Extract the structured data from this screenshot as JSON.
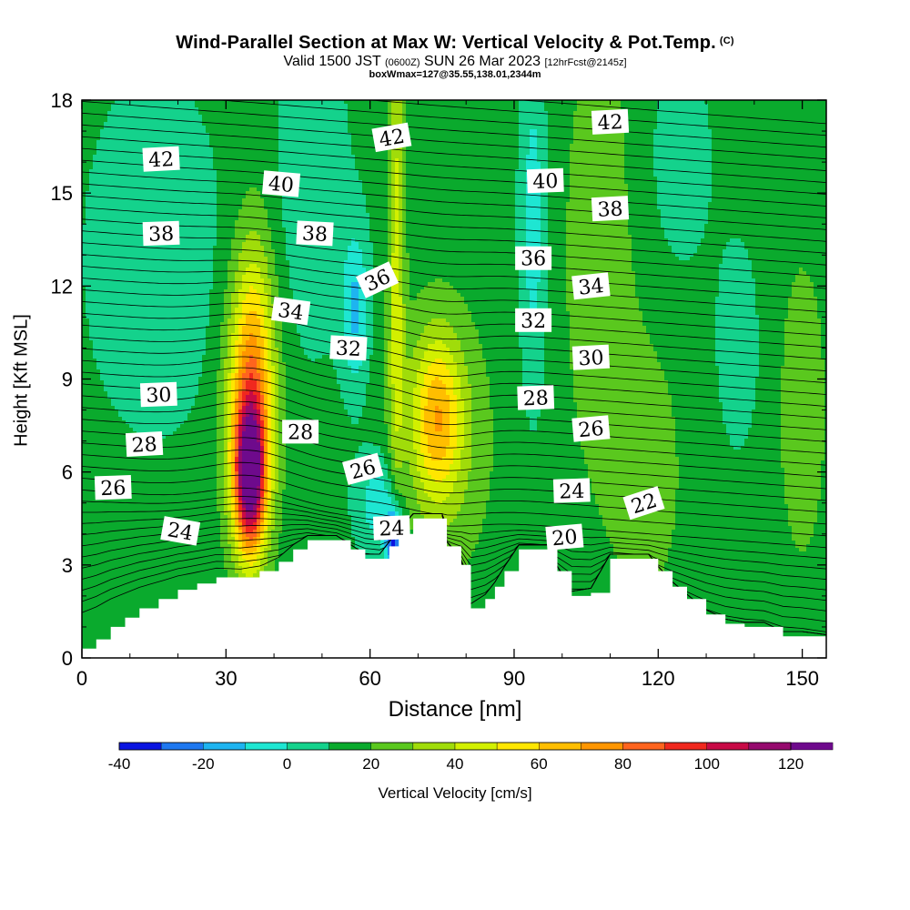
{
  "title": "Wind-Parallel Section at Max W: Vertical Velocity & Pot.Temp.",
  "copyright": "(C)",
  "subtitle": {
    "prefix": "Valid 1500 JST",
    "utc": "(0600Z)",
    "date": "SUN 26 Mar 2023",
    "fcst": "[12hrFcst@2145z]"
  },
  "box_info": "boxWmax=127@35.55,138.01,2344m",
  "chart_data": {
    "type": "heatmap",
    "xlabel": "Distance [nm]",
    "ylabel": "Height [Kft MSL]",
    "xlim": [
      0,
      155
    ],
    "ylim": [
      0,
      18
    ],
    "x_ticks": [
      0,
      30,
      60,
      90,
      120,
      150
    ],
    "y_ticks": [
      0,
      3,
      6,
      9,
      12,
      15,
      18
    ],
    "colorbar": {
      "label": "Vertical Velocity [cm/s]",
      "ticks": [
        -40,
        -20,
        0,
        20,
        40,
        60,
        80,
        100,
        120
      ],
      "bins": [
        -40,
        -30,
        -20,
        -10,
        0,
        10,
        20,
        30,
        40,
        50,
        60,
        70,
        80,
        90,
        100,
        110,
        120
      ],
      "colors": [
        "#0a14e0",
        "#1e78f0",
        "#1eb4f0",
        "#1ee6d2",
        "#14d28c",
        "#0aaa2d",
        "#5ac81e",
        "#a0dc0a",
        "#d2f000",
        "#ffe600",
        "#ffbe00",
        "#ff9600",
        "#ff641e",
        "#f0281e",
        "#c80a46",
        "#960a6e",
        "#6e0a8c"
      ]
    },
    "terrain": [
      [
        0,
        0.3
      ],
      [
        3,
        0.6
      ],
      [
        6,
        1.0
      ],
      [
        9,
        1.3
      ],
      [
        12,
        1.6
      ],
      [
        16,
        1.9
      ],
      [
        20,
        2.2
      ],
      [
        24,
        2.4
      ],
      [
        28,
        2.6
      ],
      [
        33,
        2.6
      ],
      [
        37,
        2.8
      ],
      [
        41,
        3.1
      ],
      [
        44,
        3.5
      ],
      [
        47,
        3.8
      ],
      [
        50,
        3.8
      ],
      [
        53,
        3.8
      ],
      [
        56,
        3.5
      ],
      [
        59,
        3.2
      ],
      [
        62,
        3.2
      ],
      [
        64,
        3.6
      ],
      [
        66,
        4.0
      ],
      [
        69,
        4.5
      ],
      [
        72,
        4.5
      ],
      [
        75,
        4.5
      ],
      [
        76,
        3.6
      ],
      [
        79,
        3.0
      ],
      [
        81,
        1.6
      ],
      [
        84,
        1.9
      ],
      [
        86,
        2.3
      ],
      [
        88,
        2.8
      ],
      [
        91,
        3.5
      ],
      [
        94,
        3.5
      ],
      [
        97,
        3.5
      ],
      [
        99,
        2.8
      ],
      [
        102,
        2.0
      ],
      [
        106,
        2.1
      ],
      [
        110,
        3.2
      ],
      [
        114,
        3.2
      ],
      [
        118,
        3.2
      ],
      [
        120,
        2.8
      ],
      [
        123,
        2.3
      ],
      [
        126,
        1.9
      ],
      [
        130,
        1.4
      ],
      [
        134,
        1.1
      ],
      [
        138,
        1.0
      ],
      [
        142,
        1.0
      ],
      [
        146,
        0.7
      ],
      [
        150,
        0.7
      ],
      [
        155,
        0.6
      ]
    ],
    "w_features": [
      {
        "x": 35,
        "y": 5.8,
        "sx": 2.2,
        "sy": 1.6,
        "amp": 90
      },
      {
        "x": 35,
        "y": 7.8,
        "sx": 3.5,
        "sy": 3.0,
        "amp": 55
      },
      {
        "x": 36,
        "y": 10.5,
        "sx": 3.0,
        "sy": 3.0,
        "amp": 20
      },
      {
        "x": 74,
        "y": 7.8,
        "sx": 3.5,
        "sy": 1.8,
        "amp": 40
      },
      {
        "x": 75,
        "y": 7.0,
        "sx": 7.0,
        "sy": 3.0,
        "amp": 18
      },
      {
        "x": 65.5,
        "y": 13.0,
        "sx": 1.2,
        "sy": 6.0,
        "amp": 30
      },
      {
        "x": 65,
        "y": 3.8,
        "sx": 1.2,
        "sy": 0.7,
        "amp": -55
      },
      {
        "x": 62,
        "y": 5.0,
        "sx": 3.5,
        "sy": 1.2,
        "amp": -22
      },
      {
        "x": 57,
        "y": 11.2,
        "sx": 2.0,
        "sy": 1.8,
        "amp": -25
      },
      {
        "x": 94,
        "y": 14.0,
        "sx": 2.0,
        "sy": 4.0,
        "amp": -20
      },
      {
        "x": 15,
        "y": 13.0,
        "sx": 10.0,
        "sy": 4.0,
        "amp": -12
      },
      {
        "x": 48,
        "y": 15.0,
        "sx": 6.0,
        "sy": 4.0,
        "amp": -10
      },
      {
        "x": 108,
        "y": 13.0,
        "sx": 6.0,
        "sy": 6.0,
        "amp": 12
      },
      {
        "x": 137,
        "y": 10.0,
        "sx": 3.0,
        "sy": 2.2,
        "amp": -14
      },
      {
        "x": 118,
        "y": 6.0,
        "sx": 5.0,
        "sy": 3.0,
        "amp": 12
      },
      {
        "x": 124,
        "y": 16.0,
        "sx": 6.0,
        "sy": 3.0,
        "amp": -8
      },
      {
        "x": 150,
        "y": 8.0,
        "sx": 6.0,
        "sy": 6.0,
        "amp": 8
      }
    ],
    "w_background": 14,
    "contour_labels": [
      {
        "text": "42",
        "x": 16.5,
        "y": 16.1,
        "rot": -3
      },
      {
        "text": "40",
        "x": 41.5,
        "y": 15.3,
        "rot": 5
      },
      {
        "text": "38",
        "x": 16.5,
        "y": 13.7,
        "rot": -2
      },
      {
        "text": "38",
        "x": 48.5,
        "y": 13.7,
        "rot": 3
      },
      {
        "text": "34",
        "x": 43.5,
        "y": 11.2,
        "rot": 8
      },
      {
        "text": "36",
        "x": 61.5,
        "y": 12.2,
        "rot": -25
      },
      {
        "text": "32",
        "x": 55.5,
        "y": 10.0,
        "rot": 3
      },
      {
        "text": "30",
        "x": 16.0,
        "y": 8.5,
        "rot": -2
      },
      {
        "text": "28",
        "x": 13.0,
        "y": 6.9,
        "rot": -3
      },
      {
        "text": "28",
        "x": 45.5,
        "y": 7.3,
        "rot": 0
      },
      {
        "text": "26",
        "x": 6.5,
        "y": 5.5,
        "rot": -2
      },
      {
        "text": "26",
        "x": 58.5,
        "y": 6.1,
        "rot": -15
      },
      {
        "text": "24",
        "x": 20.5,
        "y": 4.1,
        "rot": 10
      },
      {
        "text": "24",
        "x": 64.5,
        "y": 4.2,
        "rot": -2
      },
      {
        "text": "42",
        "x": 64.5,
        "y": 16.8,
        "rot": -10
      },
      {
        "text": "40",
        "x": 96.5,
        "y": 15.4,
        "rot": -2
      },
      {
        "text": "36",
        "x": 94.0,
        "y": 12.9,
        "rot": 0
      },
      {
        "text": "32",
        "x": 94.0,
        "y": 10.9,
        "rot": 0
      },
      {
        "text": "28",
        "x": 94.5,
        "y": 8.4,
        "rot": -2
      },
      {
        "text": "42",
        "x": 110.0,
        "y": 17.3,
        "rot": -3
      },
      {
        "text": "38",
        "x": 110.0,
        "y": 14.5,
        "rot": -3
      },
      {
        "text": "34",
        "x": 106.0,
        "y": 12.0,
        "rot": -6
      },
      {
        "text": "30",
        "x": 106.0,
        "y": 9.7,
        "rot": -3
      },
      {
        "text": "26",
        "x": 106.0,
        "y": 7.4,
        "rot": -5
      },
      {
        "text": "24",
        "x": 102.0,
        "y": 5.4,
        "rot": -2
      },
      {
        "text": "22",
        "x": 117.0,
        "y": 5.0,
        "rot": -18
      },
      {
        "text": "20",
        "x": 100.5,
        "y": 3.9,
        "rot": -5
      }
    ]
  }
}
